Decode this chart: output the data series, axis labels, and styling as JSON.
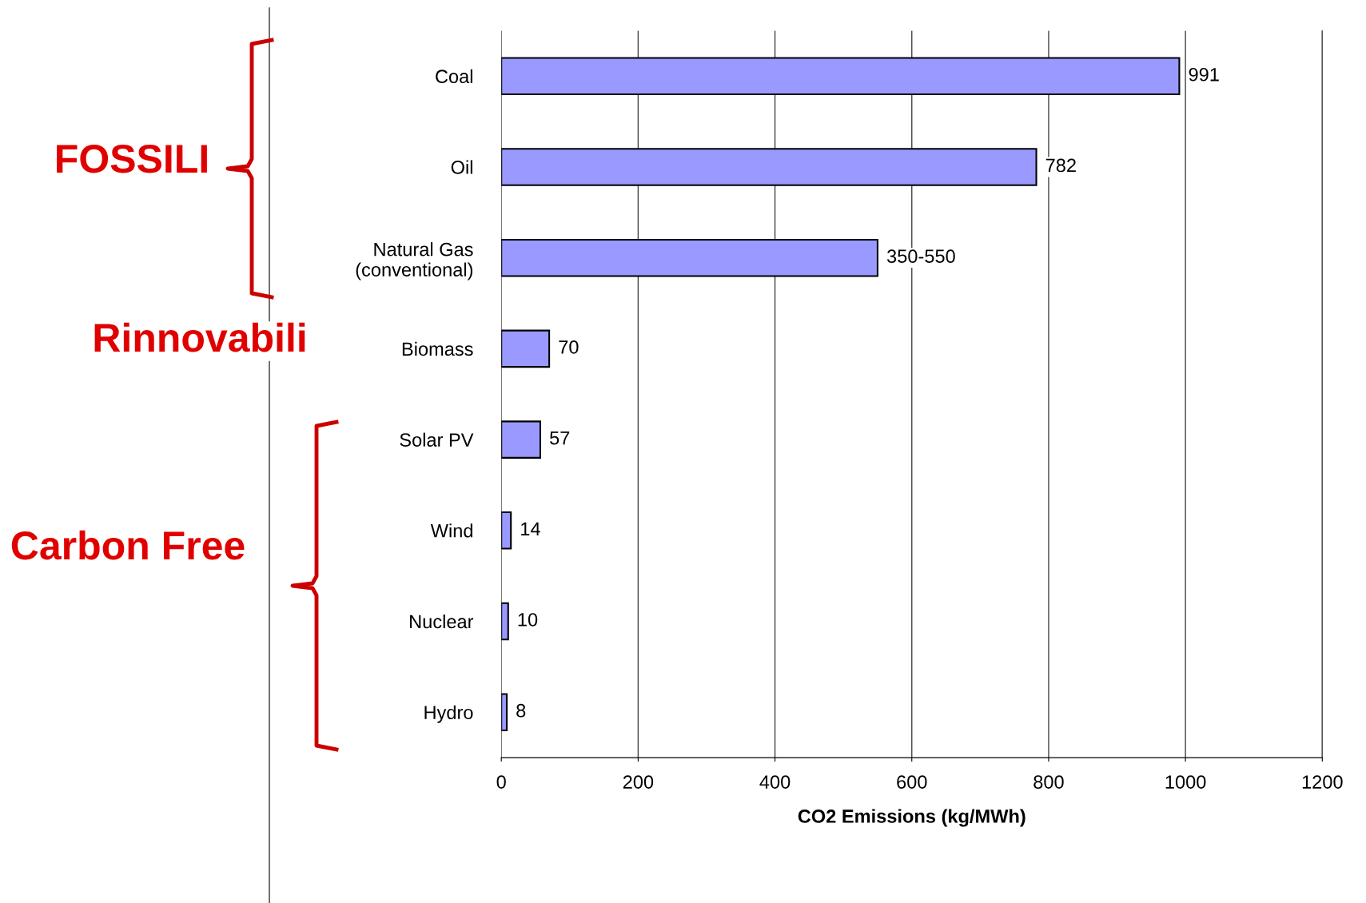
{
  "chart_data": {
    "type": "bar",
    "orientation": "horizontal",
    "xlabel": "CO2 Emissions (kg/MWh)",
    "categories": [
      "Coal",
      "Oil",
      "Natural Gas\n(conventional)",
      "Biomass",
      "Solar PV",
      "Wind",
      "Nuclear",
      "Hydro"
    ],
    "values": [
      991,
      782,
      550,
      70,
      57,
      14,
      10,
      8
    ],
    "value_labels": [
      "991",
      "782",
      "350-550",
      "70",
      "57",
      "14",
      "10",
      "8"
    ],
    "color": "#9999ff",
    "xlim": [
      0,
      1200
    ],
    "xticks": [
      0,
      200,
      400,
      600,
      800,
      1000,
      1200
    ],
    "grid": "x",
    "annotations": [
      "FOSSILI",
      "Rinnovabili",
      "Carbon Free"
    ]
  }
}
